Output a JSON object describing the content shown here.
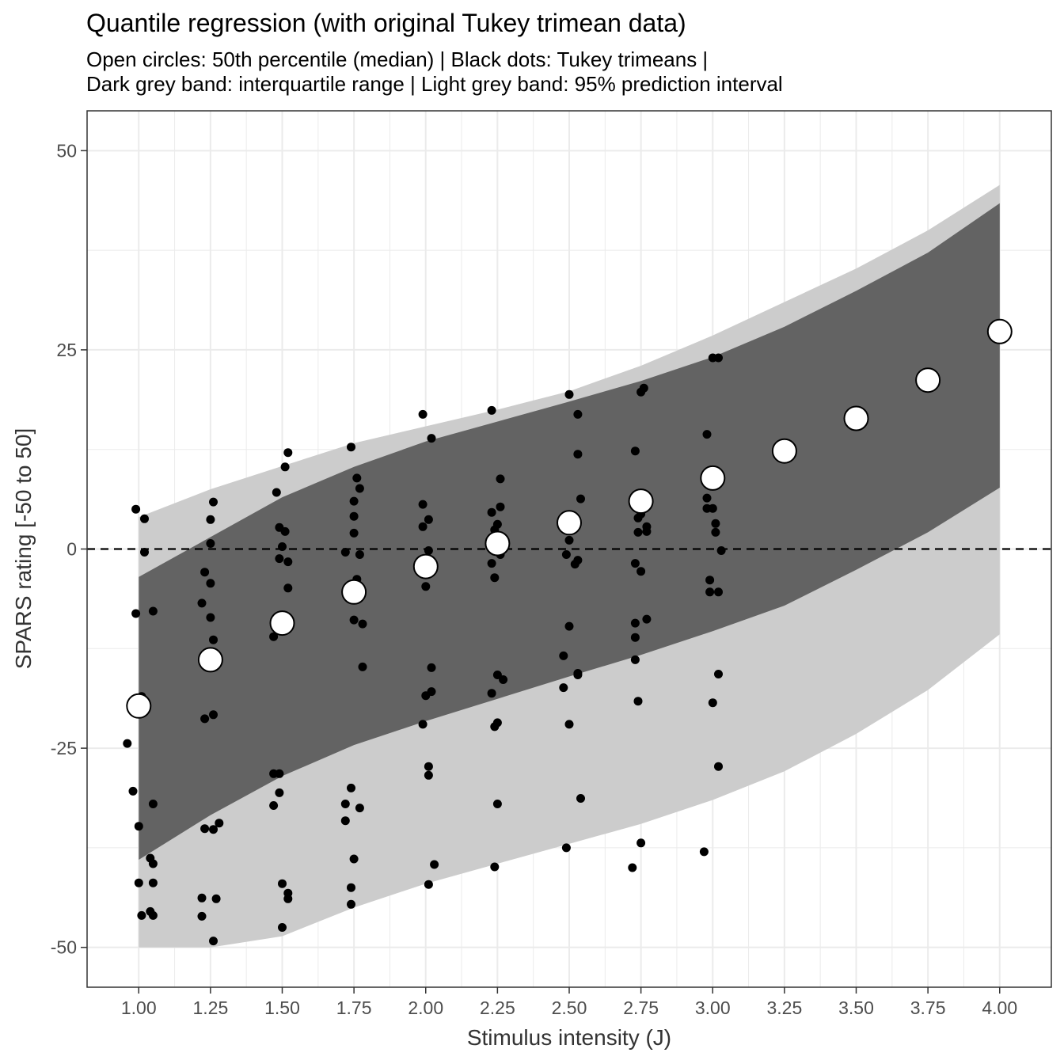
{
  "chart_data": {
    "type": "scatter",
    "title": "Quantile regression (with original Tukey trimean data)",
    "subtitle_lines": [
      "Open circles: 50th percentile (median) | Black dots: Tukey trimeans |",
      "Dark grey band: interquartile range | Light grey band: 95% prediction interval"
    ],
    "xlabel": "Stimulus intensity (J)",
    "ylabel": "SPARS rating [-50 to 50]",
    "xlim": [
      0.82,
      4.18
    ],
    "ylim": [
      -55,
      55
    ],
    "x_ticks": [
      1.0,
      1.25,
      1.5,
      1.75,
      2.0,
      2.25,
      2.5,
      2.75,
      3.0,
      3.25,
      3.5,
      3.75,
      4.0
    ],
    "x_tick_labels": [
      "1.00",
      "1.25",
      "1.50",
      "1.75",
      "2.00",
      "2.25",
      "2.50",
      "2.75",
      "3.00",
      "3.25",
      "3.50",
      "3.75",
      "4.00"
    ],
    "y_ticks": [
      -50,
      -25,
      0,
      25,
      50
    ],
    "y_tick_labels": [
      "-50",
      "-25",
      "0",
      "25",
      "50"
    ],
    "grid": true,
    "reference_line_y": 0,
    "colors": {
      "light_band": "#cccccc",
      "dark_band": "#636363",
      "points": "#000000",
      "median_fill": "#ffffff",
      "grid": "#ebebeb"
    },
    "bands": {
      "x": [
        1.0,
        1.25,
        1.5,
        1.75,
        2.0,
        2.25,
        2.5,
        2.75,
        3.0,
        3.25,
        3.5,
        3.75,
        4.0
      ],
      "pi95_lower": [
        -50,
        -50,
        -48.6,
        -45,
        -42,
        -39.5,
        -37,
        -34.5,
        -31.5,
        -27.9,
        -23.2,
        -17.7,
        -10.7
      ],
      "pi95_upper": [
        4,
        7.5,
        10.4,
        13.3,
        15.4,
        17.5,
        19.8,
        23,
        26.8,
        31,
        35.2,
        40,
        45.7
      ],
      "iqr_lower": [
        -39,
        -33.4,
        -28.5,
        -24.6,
        -21.6,
        -18.8,
        -16,
        -13.3,
        -10.3,
        -7.1,
        -2.6,
        2.1,
        7.7
      ],
      "iqr_upper": [
        -3.5,
        1.5,
        6.5,
        10.3,
        13.5,
        16,
        18.5,
        21.1,
        24.1,
        27.9,
        32.4,
        37.2,
        43.4
      ]
    },
    "median": {
      "x": [
        1.0,
        1.25,
        1.5,
        1.75,
        2.0,
        2.25,
        2.5,
        2.75,
        3.0,
        3.25,
        3.5,
        3.75,
        4.0
      ],
      "y": [
        -19.7,
        -13.9,
        -9.3,
        -5.4,
        -2.2,
        0.7,
        3.3,
        6,
        8.9,
        12.3,
        16.4,
        21.2,
        27.3
      ]
    },
    "trimeans": [
      [
        0.99,
        5
      ],
      [
        1.02,
        3.8
      ],
      [
        1.02,
        -0.4
      ],
      [
        1.05,
        -7.8
      ],
      [
        0.99,
        -8.1
      ],
      [
        1.01,
        -18.5
      ],
      [
        0.96,
        -24.4
      ],
      [
        0.98,
        -30.4
      ],
      [
        1.05,
        -32
      ],
      [
        1.0,
        -34.8
      ],
      [
        1.04,
        -38.8
      ],
      [
        1.05,
        -39.5
      ],
      [
        1.0,
        -41.9
      ],
      [
        1.05,
        -41.9
      ],
      [
        1.04,
        -45.5
      ],
      [
        1.01,
        -46
      ],
      [
        1.05,
        -46
      ],
      [
        1.26,
        5.9
      ],
      [
        1.25,
        3.7
      ],
      [
        1.25,
        0.7
      ],
      [
        1.23,
        -2.9
      ],
      [
        1.25,
        -4.3
      ],
      [
        1.22,
        -6.8
      ],
      [
        1.25,
        -8.6
      ],
      [
        1.26,
        -11.4
      ],
      [
        1.26,
        -20.8
      ],
      [
        1.23,
        -21.3
      ],
      [
        1.28,
        -34.4
      ],
      [
        1.23,
        -35.1
      ],
      [
        1.26,
        -35.2
      ],
      [
        1.22,
        -43.8
      ],
      [
        1.27,
        -43.9
      ],
      [
        1.22,
        -46.1
      ],
      [
        1.26,
        -49.2
      ],
      [
        1.52,
        12.1
      ],
      [
        1.51,
        10.3
      ],
      [
        1.48,
        7.1
      ],
      [
        1.49,
        2.7
      ],
      [
        1.51,
        2.2
      ],
      [
        1.5,
        0.3
      ],
      [
        1.49,
        -1.2
      ],
      [
        1.52,
        -1.6
      ],
      [
        1.52,
        -4.9
      ],
      [
        1.47,
        -11
      ],
      [
        1.47,
        -28.2
      ],
      [
        1.49,
        -28.2
      ],
      [
        1.49,
        -30.6
      ],
      [
        1.47,
        -32.2
      ],
      [
        1.5,
        -42
      ],
      [
        1.52,
        -43.2
      ],
      [
        1.52,
        -43.9
      ],
      [
        1.5,
        -47.5
      ],
      [
        1.74,
        12.8
      ],
      [
        1.76,
        8.9
      ],
      [
        1.77,
        7.6
      ],
      [
        1.75,
        6
      ],
      [
        1.75,
        4.1
      ],
      [
        1.75,
        2
      ],
      [
        1.72,
        -0.4
      ],
      [
        1.77,
        -0.7
      ],
      [
        1.76,
        -3.8
      ],
      [
        1.75,
        -8.9
      ],
      [
        1.78,
        -9.4
      ],
      [
        1.78,
        -14.8
      ],
      [
        1.74,
        -30
      ],
      [
        1.72,
        -32
      ],
      [
        1.77,
        -32.5
      ],
      [
        1.72,
        -34.1
      ],
      [
        1.75,
        -38.9
      ],
      [
        1.74,
        -42.5
      ],
      [
        1.74,
        -44.6
      ],
      [
        1.99,
        16.9
      ],
      [
        2.02,
        13.9
      ],
      [
        1.99,
        5.6
      ],
      [
        2.01,
        3.7
      ],
      [
        1.99,
        2.8
      ],
      [
        2.01,
        -0.2
      ],
      [
        2.0,
        -2.3
      ],
      [
        2.0,
        -4.7
      ],
      [
        2.02,
        -14.9
      ],
      [
        2.02,
        -17.9
      ],
      [
        2.0,
        -18.4
      ],
      [
        1.99,
        -22
      ],
      [
        2.01,
        -27.3
      ],
      [
        2.01,
        -28.4
      ],
      [
        2.03,
        -39.6
      ],
      [
        2.01,
        -42.1
      ],
      [
        2.23,
        17.4
      ],
      [
        2.26,
        8.8
      ],
      [
        2.26,
        5.3
      ],
      [
        2.23,
        4.6
      ],
      [
        2.25,
        3.1
      ],
      [
        2.24,
        2.4
      ],
      [
        2.26,
        -0.7
      ],
      [
        2.23,
        -1.8
      ],
      [
        2.24,
        -3.6
      ],
      [
        2.25,
        -15.8
      ],
      [
        2.27,
        -16.4
      ],
      [
        2.23,
        -18.1
      ],
      [
        2.25,
        -21.8
      ],
      [
        2.24,
        -22.3
      ],
      [
        2.25,
        -32
      ],
      [
        2.24,
        -39.9
      ],
      [
        2.5,
        19.4
      ],
      [
        2.53,
        16.9
      ],
      [
        2.53,
        11.9
      ],
      [
        2.54,
        6.3
      ],
      [
        2.5,
        1.1
      ],
      [
        2.49,
        -0.7
      ],
      [
        2.53,
        -1.4
      ],
      [
        2.52,
        -1.9
      ],
      [
        2.5,
        -9.7
      ],
      [
        2.48,
        -13.4
      ],
      [
        2.48,
        -17.4
      ],
      [
        2.53,
        -15.8
      ],
      [
        2.53,
        -15.6
      ],
      [
        2.5,
        -22
      ],
      [
        2.54,
        -31.3
      ],
      [
        2.49,
        -37.5
      ],
      [
        2.76,
        20.2
      ],
      [
        2.75,
        19.7
      ],
      [
        2.73,
        12.3
      ],
      [
        2.75,
        4.4
      ],
      [
        2.74,
        3.9
      ],
      [
        2.77,
        2.8
      ],
      [
        2.77,
        2.2
      ],
      [
        2.74,
        2.1
      ],
      [
        2.73,
        -1.8
      ],
      [
        2.75,
        -2.8
      ],
      [
        2.77,
        -8.8
      ],
      [
        2.73,
        -9.3
      ],
      [
        2.73,
        -11.1
      ],
      [
        2.73,
        -13.9
      ],
      [
        2.74,
        -19.1
      ],
      [
        2.75,
        -36.9
      ],
      [
        2.72,
        -40
      ],
      [
        3.0,
        24
      ],
      [
        3.02,
        24
      ],
      [
        2.98,
        14.4
      ],
      [
        2.98,
        6.4
      ],
      [
        2.98,
        5.1
      ],
      [
        3.0,
        5.1
      ],
      [
        3.01,
        3.2
      ],
      [
        3.01,
        2.1
      ],
      [
        3.03,
        -0.2
      ],
      [
        2.99,
        -3.9
      ],
      [
        2.99,
        -5.4
      ],
      [
        3.02,
        -5.4
      ],
      [
        3.02,
        -15.7
      ],
      [
        3.0,
        -19.3
      ],
      [
        3.02,
        -27.3
      ],
      [
        2.97,
        -38
      ]
    ]
  }
}
